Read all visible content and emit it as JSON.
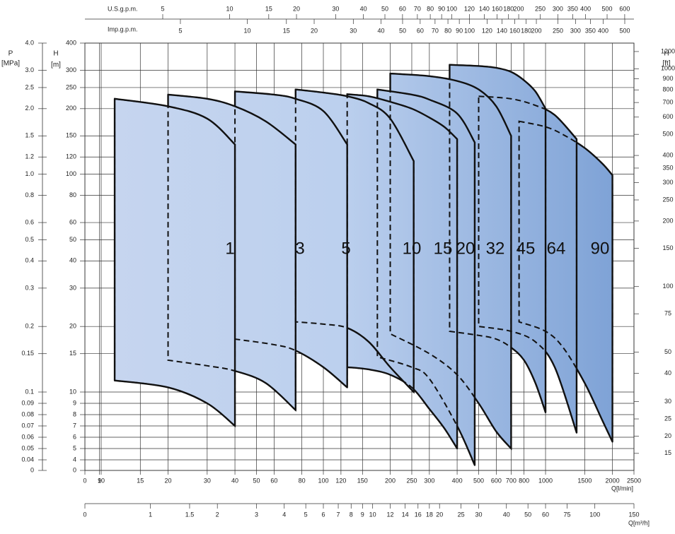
{
  "chart_data": {
    "type": "pump-range",
    "p_label": "P",
    "p_unit": "[MPa]",
    "plim": [
      0,
      4
    ],
    "pticks": [
      {
        "value": 4,
        "label": "4.0"
      },
      {
        "value": 3,
        "label": "3.0"
      },
      2.5,
      {
        "value": 2,
        "label": "2.0"
      },
      1.5,
      1.2,
      {
        "value": 1,
        "label": "1.0"
      },
      0.8,
      0.6,
      0.5,
      0.4,
      0.3,
      0.2,
      0.15,
      0.1,
      0.09,
      0.08,
      0.07,
      0.06,
      0.05,
      0.04,
      0
    ],
    "ylabel": "H",
    "yunit": "[m]",
    "ylim": [
      0,
      400
    ],
    "yticks": [
      400,
      300,
      250,
      200,
      150,
      120,
      100,
      80,
      60,
      50,
      40,
      30,
      20,
      15,
      10,
      9,
      8,
      7,
      6,
      5,
      4,
      0
    ],
    "y2label": "H",
    "y2unit": "[ft]",
    "y2lim": [
      0,
      1312
    ],
    "y2ticks": [
      1200,
      1000,
      900,
      800,
      700,
      600,
      500,
      400,
      350,
      300,
      250,
      200,
      150,
      100,
      75,
      50,
      40,
      30,
      25,
      20,
      15
    ],
    "xlabel": "Q[l/min]",
    "xlim": [
      0,
      2500
    ],
    "xticks": [
      0,
      9,
      10,
      15,
      20,
      30,
      40,
      50,
      60,
      80,
      100,
      120,
      150,
      200,
      250,
      300,
      400,
      500,
      600,
      700,
      800,
      1000,
      1500,
      2000,
      2500
    ],
    "us_label": "U.S.g.p.m.",
    "us_lim": [
      0,
      660.5
    ],
    "us_ticks": [
      5,
      10,
      15,
      20,
      30,
      40,
      50,
      60,
      70,
      80,
      90,
      100,
      120,
      140,
      160,
      180,
      200,
      250,
      300,
      350,
      400,
      500,
      600
    ],
    "imp_label": "Imp.g.p.m.",
    "imp_lim": [
      0,
      550
    ],
    "imp_ticks": [
      5,
      10,
      15,
      20,
      30,
      40,
      50,
      60,
      70,
      80,
      90,
      100,
      120,
      140,
      160,
      180,
      200,
      250,
      300,
      350,
      400,
      500
    ],
    "m3h_label": "Q[m³/h]",
    "m3h_lim": [
      0,
      150
    ],
    "m3h_ticks": [
      0,
      1,
      1.5,
      2,
      3,
      4,
      5,
      6,
      7,
      8,
      9,
      10,
      12,
      14,
      16,
      18,
      20,
      25,
      30,
      40,
      50,
      60,
      75,
      100,
      150
    ],
    "grid": true,
    "series": [
      {
        "name": "1",
        "x": [
          11.5,
          20,
          30,
          40
        ],
        "upper": [
          222,
          205,
          180,
          137
        ],
        "lower": [
          11.3,
          10.5,
          9,
          7
        ]
      },
      {
        "name": "3",
        "x": [
          20,
          30,
          40,
          55,
          75
        ],
        "upper": [
          232,
          222,
          205,
          175,
          137
        ],
        "lower": [
          14,
          13.2,
          12.5,
          11,
          8.4
        ]
      },
      {
        "name": "5",
        "x": [
          40,
          60,
          75,
          100,
          128
        ],
        "upper": [
          240,
          232,
          222,
          195,
          137
        ],
        "lower": [
          17.5,
          16.5,
          15.5,
          13,
          10.5
        ]
      },
      {
        "name": "10",
        "x": [
          75,
          100,
          128,
          160,
          200,
          255
        ],
        "upper": [
          245,
          237,
          228,
          212,
          180,
          115
        ],
        "lower": [
          21,
          20.5,
          19.7,
          17,
          13,
          10
        ]
      },
      {
        "name": "15",
        "x": [
          128,
          160,
          200,
          250,
          300,
          350,
          400
        ],
        "upper": [
          233,
          228,
          215,
          200,
          182,
          165,
          145
        ],
        "lower": [
          13,
          12.7,
          12,
          10.5,
          8.5,
          6.8,
          5
        ]
      },
      {
        "name": "20",
        "x": [
          175,
          250,
          300,
          400,
          480
        ],
        "upper": [
          245,
          232,
          220,
          190,
          140
        ],
        "lower": [
          14.5,
          13,
          11.5,
          7,
          2
        ]
      },
      {
        "name": "32",
        "x": [
          200,
          300,
          400,
          500,
          600,
          700
        ],
        "upper": [
          290,
          282,
          268,
          245,
          205,
          150
        ],
        "lower": [
          18.5,
          15,
          12,
          9,
          6.5,
          5
        ]
      },
      {
        "name": "45",
        "x": [
          370,
          500,
          600,
          700,
          800,
          900,
          1000
        ],
        "upper": [
          318,
          314,
          308,
          295,
          270,
          240,
          200
        ],
        "lower": [
          19,
          18.2,
          17.5,
          16,
          14,
          11,
          8.2
        ]
      },
      {
        "name": "64",
        "x": [
          500,
          700,
          900,
          1100,
          1380
        ],
        "upper": [
          228,
          222,
          207,
          187,
          145
        ],
        "lower": [
          20,
          19,
          17,
          13,
          6.4
        ]
      },
      {
        "name": "90",
        "x": [
          760,
          1000,
          1200,
          1500,
          1800,
          2000
        ],
        "upper": [
          175,
          165,
          152,
          132,
          112,
          99
        ],
        "lower": [
          21,
          19,
          16,
          11,
          7.5,
          5.6
        ]
      }
    ]
  }
}
